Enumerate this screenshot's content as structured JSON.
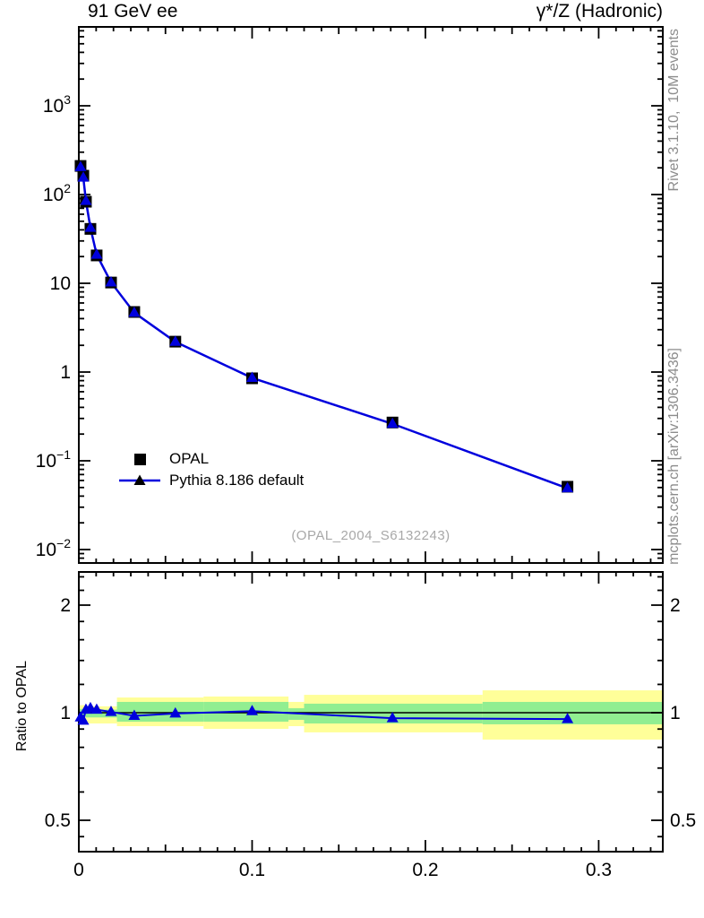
{
  "header": {
    "left_title": "91 GeV ee",
    "right_title": "γ*/Z (Hadronic)"
  },
  "side_notes": {
    "top": "Rivet 3.1.10,  10M events",
    "bottom": "mcplots.cern.ch [arXiv:1306.3436]"
  },
  "watermark": "(OPAL_2004_S6132243)",
  "colors": {
    "accent_blue": "#0000dd",
    "data_black": "#000000",
    "band_yellow": "#ffff99",
    "band_green": "#91ee91",
    "note_gray": "#8c8c8c",
    "watermark_gray": "#a8a8a8"
  },
  "legend": [
    {
      "label": "OPAL",
      "marker": "square"
    },
    {
      "label": "Pythia 8.186 default",
      "marker": "triangle-line"
    }
  ],
  "chart_data": [
    {
      "type": "line",
      "panel": "main",
      "title": "",
      "xlabel": "",
      "ylabel": "",
      "yscale": "log",
      "xlim": [
        0,
        0.337
      ],
      "ylim": [
        0.00705,
        7730
      ],
      "grid": false,
      "x": [
        0.001,
        0.0026,
        0.0041,
        0.0067,
        0.0103,
        0.0186,
        0.032,
        0.0557,
        0.1,
        0.181,
        0.282
      ],
      "series": [
        {
          "name": "OPAL",
          "marker": "square",
          "color": "#000000",
          "values": [
            210,
            163,
            83,
            41,
            20.6,
            10.2,
            4.75,
            2.2,
            0.85,
            0.27,
            0.051
          ]
        },
        {
          "name": "Pythia 8.186 default",
          "marker": "triangle",
          "color": "#0000dd",
          "values": [
            203.7,
            154.9,
            84.7,
            42.2,
            21.0,
            10.25,
            4.66,
            2.19,
            0.859,
            0.261,
            0.049
          ]
        }
      ],
      "yticks": [
        {
          "v": 1000,
          "base": "10",
          "exp": "3"
        },
        {
          "v": 100,
          "base": "10",
          "exp": "2"
        },
        {
          "v": 10,
          "base": "10",
          "exp": ""
        },
        {
          "v": 1,
          "base": "1",
          "exp": ""
        },
        {
          "v": 0.1,
          "base": "10",
          "exp": "−1"
        },
        {
          "v": 0.01,
          "base": "10",
          "exp": "−2"
        }
      ],
      "xticks": [
        {
          "v": 0,
          "label": "0"
        },
        {
          "v": 0.1,
          "label": "0.1"
        },
        {
          "v": 0.2,
          "label": "0.2"
        },
        {
          "v": 0.3,
          "label": "0.3"
        }
      ]
    },
    {
      "type": "line",
      "panel": "ratio",
      "ylabel": "Ratio to OPAL",
      "yscale": "log",
      "ylim": [
        0.409,
        2.48
      ],
      "x": [
        0.001,
        0.0026,
        0.0041,
        0.0067,
        0.0103,
        0.0186,
        0.032,
        0.0557,
        0.1,
        0.181,
        0.282
      ],
      "values": [
        0.97,
        0.95,
        1.02,
        1.03,
        1.02,
        1.005,
        0.98,
        0.995,
        1.01,
        0.965,
        0.96
      ],
      "yticks": [
        {
          "v": 2,
          "label": "2"
        },
        {
          "v": 1,
          "label": "1"
        },
        {
          "v": 0.5,
          "label": "0.5"
        }
      ],
      "bands": [
        {
          "x0": 0.0,
          "x1": 0.004,
          "yellow": [
            0.95,
            1.05
          ],
          "green": [
            0.975,
            1.025
          ]
        },
        {
          "x0": 0.004,
          "x1": 0.022,
          "yellow": [
            0.933,
            1.042
          ],
          "green": [
            0.97,
            1.02
          ]
        },
        {
          "x0": 0.022,
          "x1": 0.072,
          "yellow": [
            0.917,
            1.103
          ],
          "green": [
            0.944,
            1.072
          ]
        },
        {
          "x0": 0.072,
          "x1": 0.121,
          "yellow": [
            0.901,
            1.11
          ],
          "green": [
            0.944,
            1.072
          ]
        },
        {
          "x0": 0.121,
          "x1": 0.13,
          "yellow": [
            0.917,
            1.072
          ],
          "green": [
            0.955,
            1.029
          ]
        },
        {
          "x0": 0.13,
          "x1": 0.233,
          "yellow": [
            0.881,
            1.122
          ],
          "green": [
            0.933,
            1.06
          ]
        },
        {
          "x0": 0.233,
          "x1": 0.337,
          "yellow": [
            0.841,
            1.155
          ],
          "green": [
            0.928,
            1.072
          ]
        }
      ]
    }
  ]
}
